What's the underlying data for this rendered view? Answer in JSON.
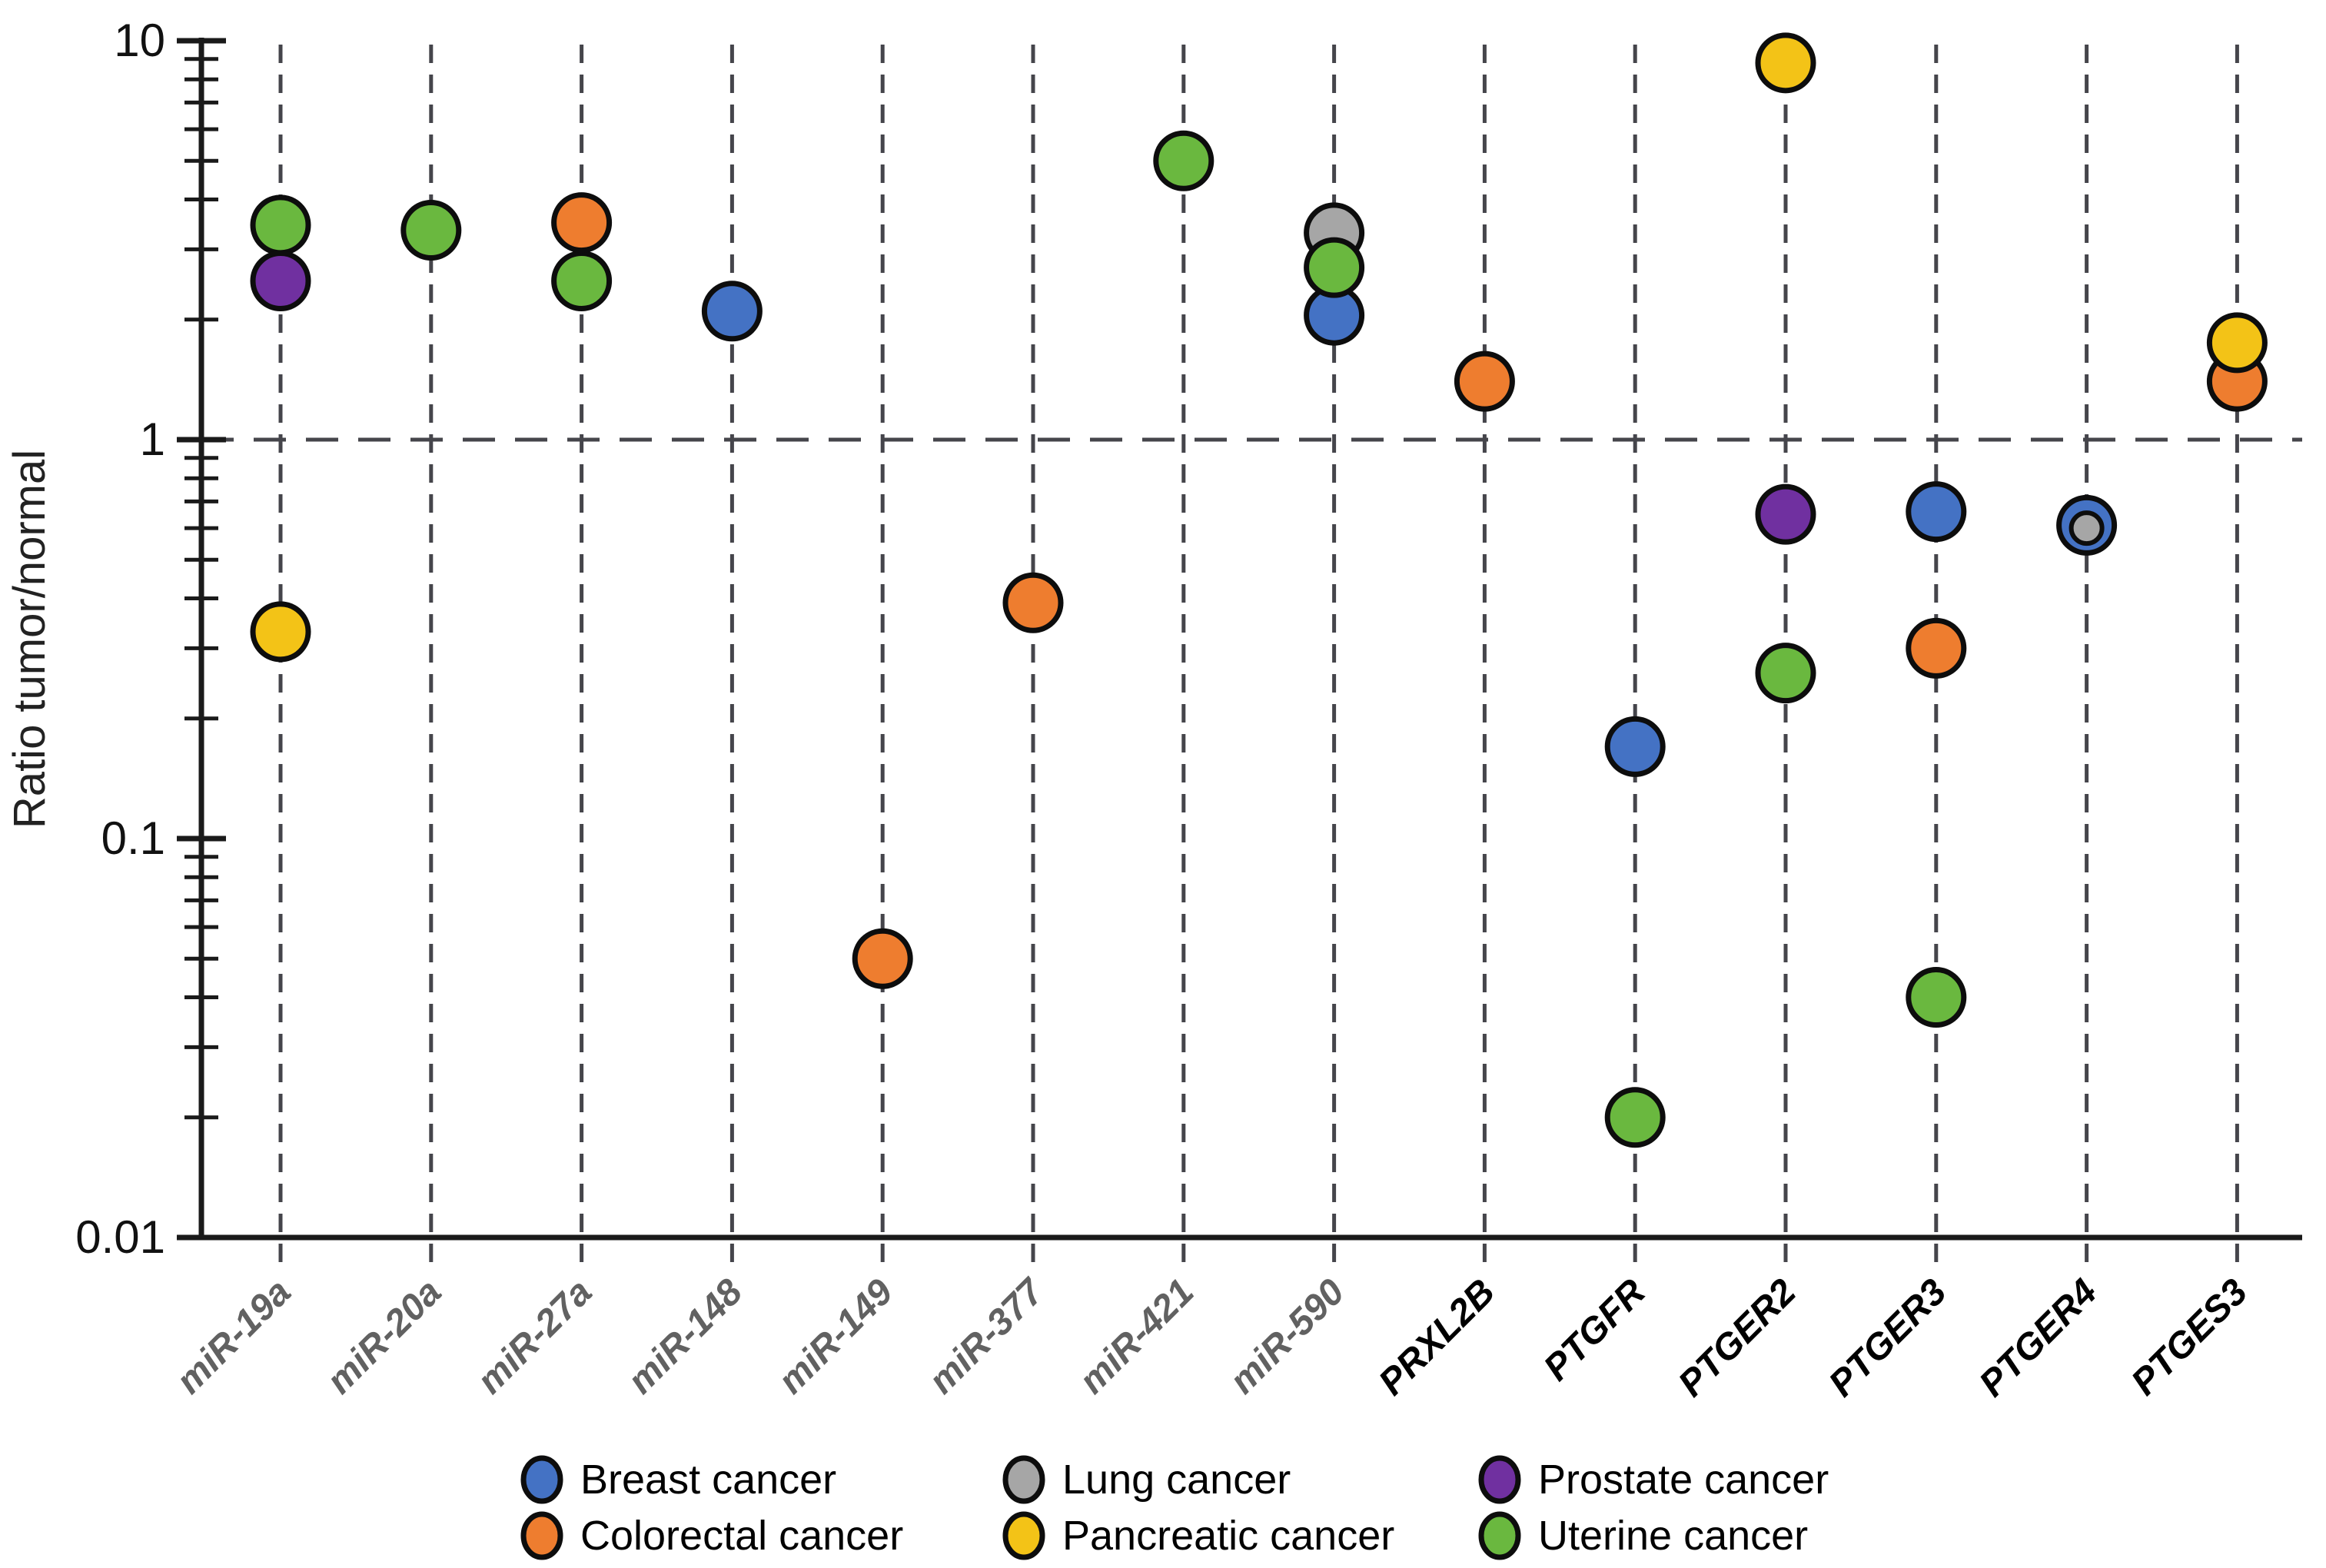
{
  "page": {
    "background": "#ffffff"
  },
  "chart_data": {
    "type": "scatter",
    "title": "",
    "xlabel": "",
    "ylabel": "Ratio tumor/normal",
    "yscale": "log",
    "ylim": [
      0.01,
      10
    ],
    "ytick_labels": [
      "10",
      "1",
      "0.1",
      "0.01"
    ],
    "reference_line_y": 1,
    "grid": "vertical dashed line at each category; horizontal dashed line at y=1",
    "legend_position": "bottom",
    "marker": {
      "radius": 36,
      "stroke": "#0d0d0d",
      "stroke_width": 7
    },
    "categories": [
      {
        "label": "miR-19a",
        "style": "mir"
      },
      {
        "label": "miR-20a",
        "style": "mir"
      },
      {
        "label": "miR-27a",
        "style": "mir"
      },
      {
        "label": "miR-148",
        "style": "mir"
      },
      {
        "label": "miR-149",
        "style": "mir"
      },
      {
        "label": "miR-377",
        "style": "mir"
      },
      {
        "label": "miR-421",
        "style": "mir"
      },
      {
        "label": "miR-590",
        "style": "mir"
      },
      {
        "label": "PRXL2B",
        "style": "gene"
      },
      {
        "label": "PTGFR",
        "style": "gene"
      },
      {
        "label": "PTGER2",
        "style": "gene"
      },
      {
        "label": "PTGER3",
        "style": "gene"
      },
      {
        "label": "PTGER4",
        "style": "gene"
      },
      {
        "label": "PTGES3",
        "style": "gene"
      }
    ],
    "series": [
      {
        "name": "Breast cancer",
        "color": "#4472C4"
      },
      {
        "name": "Colorectal cancer",
        "color": "#EE7D2F"
      },
      {
        "name": "Lung cancer",
        "color": "#A6A6A6"
      },
      {
        "name": "Pancreatic cancer",
        "color": "#F3C317"
      },
      {
        "name": "Prostate cancer",
        "color": "#7030A0"
      },
      {
        "name": "Uterine cancer",
        "color": "#6AB83F"
      }
    ],
    "points": [
      {
        "category": "miR-19a",
        "series": "Uterine cancer",
        "value": 3.45
      },
      {
        "category": "miR-19a",
        "series": "Prostate cancer",
        "value": 2.5
      },
      {
        "category": "miR-19a",
        "series": "Pancreatic cancer",
        "value": 0.33
      },
      {
        "category": "miR-20a",
        "series": "Uterine cancer",
        "value": 3.35
      },
      {
        "category": "miR-27a",
        "series": "Uterine cancer",
        "value": 2.5
      },
      {
        "category": "miR-27a",
        "series": "Colorectal cancer",
        "value": 3.5
      },
      {
        "category": "miR-148",
        "series": "Breast cancer",
        "value": 2.1
      },
      {
        "category": "miR-149",
        "series": "Colorectal cancer",
        "value": 0.05
      },
      {
        "category": "miR-377",
        "series": "Colorectal cancer",
        "value": 0.39
      },
      {
        "category": "miR-421",
        "series": "Uterine cancer",
        "value": 5.0
      },
      {
        "category": "miR-590",
        "series": "Breast cancer",
        "value": 2.05
      },
      {
        "category": "miR-590",
        "series": "Lung cancer",
        "value": 3.3
      },
      {
        "category": "miR-590",
        "series": "Uterine cancer",
        "value": 2.7
      },
      {
        "category": "PRXL2B",
        "series": "Colorectal cancer",
        "value": 1.4
      },
      {
        "category": "PTGFR",
        "series": "Breast cancer",
        "value": 0.17
      },
      {
        "category": "PTGFR",
        "series": "Uterine cancer",
        "value": 0.02
      },
      {
        "category": "PTGER2",
        "series": "Pancreatic cancer",
        "value": 8.8
      },
      {
        "category": "PTGER2",
        "series": "Prostate cancer",
        "value": 0.65
      },
      {
        "category": "PTGER2",
        "series": "Uterine cancer",
        "value": 0.26
      },
      {
        "category": "PTGER3",
        "series": "Breast cancer",
        "value": 0.66
      },
      {
        "category": "PTGER3",
        "series": "Colorectal cancer",
        "value": 0.3
      },
      {
        "category": "PTGER3",
        "series": "Uterine cancer",
        "value": 0.04
      },
      {
        "category": "PTGER4",
        "series": "Breast cancer",
        "value": 0.61
      },
      {
        "category": "PTGER4",
        "series": "Lung cancer",
        "value": 0.6,
        "small": true
      },
      {
        "category": "PTGES3",
        "series": "Colorectal cancer",
        "value": 1.4
      },
      {
        "category": "PTGES3",
        "series": "Pancreatic cancer",
        "value": 1.75
      }
    ]
  },
  "legend": {
    "rows": [
      [
        "Breast cancer",
        "Lung cancer",
        "Prostate cancer"
      ],
      [
        "Colorectal cancer",
        "Pancreatic cancer",
        "Uterine cancer"
      ]
    ]
  },
  "style": {
    "axis_color": "#1a1a1a",
    "dash_color": "#45454b",
    "mir_label_color": "#616161",
    "gene_label_color": "#000000",
    "tick_label_color": "#111111"
  }
}
